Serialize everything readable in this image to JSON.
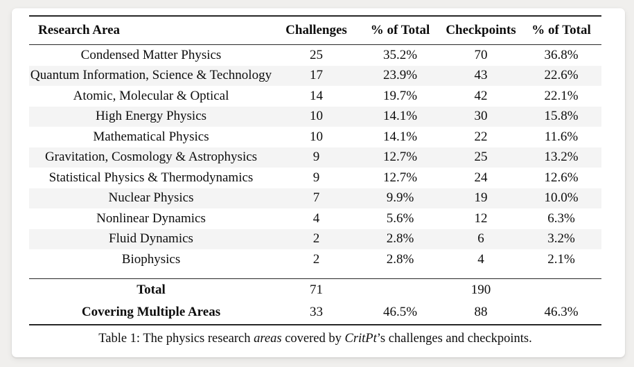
{
  "table": {
    "headers": [
      "Research Area",
      "Challenges",
      "% of Total",
      "Checkpoints",
      "% of Total"
    ],
    "rows": [
      {
        "area": "Condensed Matter Physics",
        "challenges": "25",
        "challenges_pct": "35.2%",
        "checkpoints": "70",
        "checkpoints_pct": "36.8%"
      },
      {
        "area": "Quantum Information, Science & Technology",
        "challenges": "17",
        "challenges_pct": "23.9%",
        "checkpoints": "43",
        "checkpoints_pct": "22.6%"
      },
      {
        "area": "Atomic, Molecular & Optical",
        "challenges": "14",
        "challenges_pct": "19.7%",
        "checkpoints": "42",
        "checkpoints_pct": "22.1%"
      },
      {
        "area": "High Energy Physics",
        "challenges": "10",
        "challenges_pct": "14.1%",
        "checkpoints": "30",
        "checkpoints_pct": "15.8%"
      },
      {
        "area": "Mathematical Physics",
        "challenges": "10",
        "challenges_pct": "14.1%",
        "checkpoints": "22",
        "checkpoints_pct": "11.6%"
      },
      {
        "area": "Gravitation, Cosmology & Astrophysics",
        "challenges": "9",
        "challenges_pct": "12.7%",
        "checkpoints": "25",
        "checkpoints_pct": "13.2%"
      },
      {
        "area": "Statistical Physics & Thermodynamics",
        "challenges": "9",
        "challenges_pct": "12.7%",
        "checkpoints": "24",
        "checkpoints_pct": "12.6%"
      },
      {
        "area": "Nuclear Physics",
        "challenges": "7",
        "challenges_pct": "9.9%",
        "checkpoints": "19",
        "checkpoints_pct": "10.0%"
      },
      {
        "area": "Nonlinear Dynamics",
        "challenges": "4",
        "challenges_pct": "5.6%",
        "checkpoints": "12",
        "checkpoints_pct": "6.3%"
      },
      {
        "area": "Fluid Dynamics",
        "challenges": "2",
        "challenges_pct": "2.8%",
        "checkpoints": "6",
        "checkpoints_pct": "3.2%"
      },
      {
        "area": "Biophysics",
        "challenges": "2",
        "challenges_pct": "2.8%",
        "checkpoints": "4",
        "checkpoints_pct": "2.1%"
      }
    ],
    "summary": [
      {
        "area": "Total",
        "challenges": "71",
        "challenges_pct": "",
        "checkpoints": "190",
        "checkpoints_pct": ""
      },
      {
        "area": "Covering Multiple Areas",
        "challenges": "33",
        "challenges_pct": "46.5%",
        "checkpoints": "88",
        "checkpoints_pct": "46.3%"
      }
    ]
  },
  "caption": {
    "part1": "Table 1: The physics research ",
    "italic1": "areas",
    "part2": " covered by ",
    "italic2": "CritPt",
    "part3": "’s challenges and checkpoints."
  },
  "colors": {
    "page_background": "#f0efed",
    "card_background": "#ffffff",
    "row_stripe": "#f4f4f4",
    "rule": "#262626",
    "text": "#0d0d0d"
  }
}
